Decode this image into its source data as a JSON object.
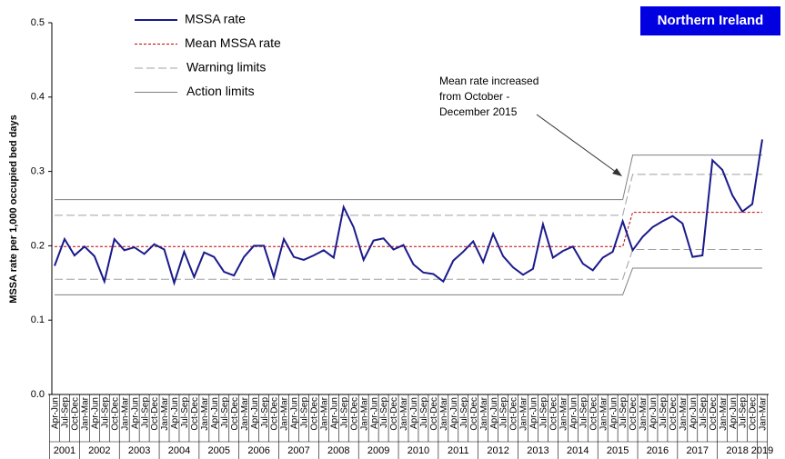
{
  "chart_data": {
    "type": "line",
    "region": "Northern Ireland",
    "y_label": "MSSA rate per 1,000 occupied bed days",
    "annotation": [
      "Mean rate increased",
      "from October -",
      "December 2015"
    ],
    "categories": [
      "Apr-Jun",
      "Jul-Sep",
      "Oct-Dec",
      "Jan-Mar",
      "Apr-Jun",
      "Jul-Sep",
      "Oct-Dec",
      "Jan-Mar",
      "Apr-Jun",
      "Jul-Sep",
      "Oct-Dec",
      "Jan-Mar",
      "Apr-Jun",
      "Jul-Sep",
      "Oct-Dec",
      "Jan-Mar",
      "Apr-Jun",
      "Jul-Sep",
      "Oct-Dec",
      "Jan-Mar",
      "Apr-Jun",
      "Jul-Sep",
      "Oct-Dec",
      "Jan-Mar",
      "Apr-Jun",
      "Jul-Sep",
      "Oct-Dec",
      "Jan-Mar",
      "Apr-Jun",
      "Jul-Sep",
      "Oct-Dec",
      "Jan-Mar",
      "Apr-Jun",
      "Jul-Sep",
      "Oct-Dec",
      "Jan-Mar",
      "Apr-Jun",
      "Jul-Sep",
      "Oct-Dec",
      "Jan-Mar",
      "Apr-Jun",
      "Jul-Sep",
      "Oct-Dec",
      "Jan-Mar",
      "Apr-Jun",
      "Jul-Sep",
      "Oct-Dec",
      "Jan-Mar",
      "Apr-Jun",
      "Jul-Sep",
      "Oct-Dec",
      "Jan-Mar",
      "Apr-Jun",
      "Jul-Sep",
      "Oct-Dec",
      "Jan-Mar",
      "Apr-Jun",
      "Jul-Sep",
      "Oct-Dec",
      "Jan-Mar",
      "Apr-Jun",
      "Jul-Sep",
      "Oct-Dec",
      "Jan-Mar",
      "Apr-Jun",
      "Jul-Sep",
      "Oct-Dec",
      "Jan-Mar",
      "Apr-Jun",
      "Jul-Sep",
      "Oct-Dec",
      "Jan-Mar"
    ],
    "years": [
      "2001",
      "2002",
      "2003",
      "2004",
      "2005",
      "2006",
      "2007",
      "2008",
      "2009",
      "2010",
      "2011",
      "2012",
      "2013",
      "2014",
      "2015",
      "2016",
      "2017",
      "2018",
      "2019"
    ],
    "ylim": [
      0,
      0.5
    ],
    "yticks": [
      {
        "value": 0,
        "label": "0.0"
      },
      0.1,
      0.2,
      0.3,
      0.4,
      0.5
    ],
    "series": [
      {
        "name": "MSSA rate",
        "color": "#1a1a8c",
        "style": "solid",
        "values": [
          0.173,
          0.209,
          0.187,
          0.199,
          0.186,
          0.152,
          0.209,
          0.194,
          0.198,
          0.189,
          0.202,
          0.195,
          0.15,
          0.192,
          0.158,
          0.191,
          0.185,
          0.165,
          0.16,
          0.185,
          0.2,
          0.2,
          0.158,
          0.209,
          0.185,
          0.181,
          0.187,
          0.194,
          0.184,
          0.252,
          0.225,
          0.181,
          0.207,
          0.21,
          0.195,
          0.201,
          0.175,
          0.164,
          0.162,
          0.152,
          0.18,
          0.192,
          0.206,
          0.178,
          0.216,
          0.186,
          0.171,
          0.161,
          0.169,
          0.229,
          0.184,
          0.193,
          0.199,
          0.176,
          0.167,
          0.184,
          0.192,
          0.233,
          0.194,
          0.212,
          0.225,
          0.233,
          0.24,
          0.23,
          0.185,
          0.187,
          0.315,
          0.302,
          0.268,
          0.246,
          0.256,
          0.343
        ]
      },
      {
        "name": "Mean MSSA rate",
        "color": "#c00000",
        "style": "dotted",
        "values": [
          0.199,
          0.199,
          0.199,
          0.199,
          0.199,
          0.199,
          0.199,
          0.199,
          0.199,
          0.199,
          0.199,
          0.199,
          0.199,
          0.199,
          0.199,
          0.199,
          0.199,
          0.199,
          0.199,
          0.199,
          0.199,
          0.199,
          0.199,
          0.199,
          0.199,
          0.199,
          0.199,
          0.199,
          0.199,
          0.199,
          0.199,
          0.199,
          0.199,
          0.199,
          0.199,
          0.199,
          0.199,
          0.199,
          0.199,
          0.199,
          0.199,
          0.199,
          0.199,
          0.199,
          0.199,
          0.199,
          0.199,
          0.199,
          0.199,
          0.199,
          0.199,
          0.199,
          0.199,
          0.199,
          0.199,
          0.199,
          0.199,
          0.199,
          0.245,
          0.245,
          0.245,
          0.245,
          0.245,
          0.245,
          0.245,
          0.245,
          0.245,
          0.245,
          0.245,
          0.245,
          0.245,
          0.245
        ]
      },
      {
        "name": "Warning limits",
        "color": "#a0a0a0",
        "style": "dashed",
        "upper": [
          0.241,
          0.241,
          0.241,
          0.241,
          0.241,
          0.241,
          0.241,
          0.241,
          0.241,
          0.241,
          0.241,
          0.241,
          0.241,
          0.241,
          0.241,
          0.241,
          0.241,
          0.241,
          0.241,
          0.241,
          0.241,
          0.241,
          0.241,
          0.241,
          0.241,
          0.241,
          0.241,
          0.241,
          0.241,
          0.241,
          0.241,
          0.241,
          0.241,
          0.241,
          0.241,
          0.241,
          0.241,
          0.241,
          0.241,
          0.241,
          0.241,
          0.241,
          0.241,
          0.241,
          0.241,
          0.241,
          0.241,
          0.241,
          0.241,
          0.241,
          0.241,
          0.241,
          0.241,
          0.241,
          0.241,
          0.241,
          0.241,
          0.241,
          0.296,
          0.296,
          0.296,
          0.296,
          0.296,
          0.296,
          0.296,
          0.296,
          0.296,
          0.296,
          0.296,
          0.296,
          0.296,
          0.296
        ],
        "lower": [
          0.155,
          0.155,
          0.155,
          0.155,
          0.155,
          0.155,
          0.155,
          0.155,
          0.155,
          0.155,
          0.155,
          0.155,
          0.155,
          0.155,
          0.155,
          0.155,
          0.155,
          0.155,
          0.155,
          0.155,
          0.155,
          0.155,
          0.155,
          0.155,
          0.155,
          0.155,
          0.155,
          0.155,
          0.155,
          0.155,
          0.155,
          0.155,
          0.155,
          0.155,
          0.155,
          0.155,
          0.155,
          0.155,
          0.155,
          0.155,
          0.155,
          0.155,
          0.155,
          0.155,
          0.155,
          0.155,
          0.155,
          0.155,
          0.155,
          0.155,
          0.155,
          0.155,
          0.155,
          0.155,
          0.155,
          0.155,
          0.155,
          0.155,
          0.195,
          0.195,
          0.195,
          0.195,
          0.195,
          0.195,
          0.195,
          0.195,
          0.195,
          0.195,
          0.195,
          0.195,
          0.195,
          0.195
        ]
      },
      {
        "name": "Action limits",
        "color": "#808080",
        "style": "solid",
        "upper": [
          0.262,
          0.262,
          0.262,
          0.262,
          0.262,
          0.262,
          0.262,
          0.262,
          0.262,
          0.262,
          0.262,
          0.262,
          0.262,
          0.262,
          0.262,
          0.262,
          0.262,
          0.262,
          0.262,
          0.262,
          0.262,
          0.262,
          0.262,
          0.262,
          0.262,
          0.262,
          0.262,
          0.262,
          0.262,
          0.262,
          0.262,
          0.262,
          0.262,
          0.262,
          0.262,
          0.262,
          0.262,
          0.262,
          0.262,
          0.262,
          0.262,
          0.262,
          0.262,
          0.262,
          0.262,
          0.262,
          0.262,
          0.262,
          0.262,
          0.262,
          0.262,
          0.262,
          0.262,
          0.262,
          0.262,
          0.262,
          0.262,
          0.262,
          0.322,
          0.322,
          0.322,
          0.322,
          0.322,
          0.322,
          0.322,
          0.322,
          0.322,
          0.322,
          0.322,
          0.322,
          0.322,
          0.322
        ],
        "lower": [
          0.134,
          0.134,
          0.134,
          0.134,
          0.134,
          0.134,
          0.134,
          0.134,
          0.134,
          0.134,
          0.134,
          0.134,
          0.134,
          0.134,
          0.134,
          0.134,
          0.134,
          0.134,
          0.134,
          0.134,
          0.134,
          0.134,
          0.134,
          0.134,
          0.134,
          0.134,
          0.134,
          0.134,
          0.134,
          0.134,
          0.134,
          0.134,
          0.134,
          0.134,
          0.134,
          0.134,
          0.134,
          0.134,
          0.134,
          0.134,
          0.134,
          0.134,
          0.134,
          0.134,
          0.134,
          0.134,
          0.134,
          0.134,
          0.134,
          0.134,
          0.134,
          0.134,
          0.134,
          0.134,
          0.134,
          0.134,
          0.134,
          0.134,
          0.17,
          0.17,
          0.17,
          0.17,
          0.17,
          0.17,
          0.17,
          0.17,
          0.17,
          0.17,
          0.17,
          0.17,
          0.17,
          0.17
        ]
      }
    ]
  }
}
